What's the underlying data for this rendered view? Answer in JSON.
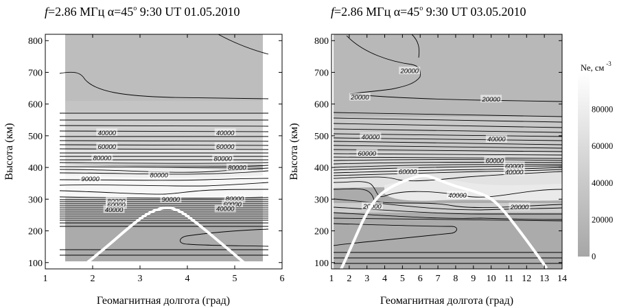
{
  "chart_data": [
    {
      "type": "contour",
      "title": {
        "prefix": "f",
        "rest": "=2.86 МГц  α=45",
        "deg": "o",
        "tail": " 9:30 UT  01.05.2010"
      },
      "xlabel": "Геомагнитная долгота (град)",
      "ylabel": "Высота (км)",
      "xlim": [
        1,
        6
      ],
      "ylim": [
        80,
        820
      ],
      "xticks": [
        1,
        2,
        3,
        4,
        5,
        6
      ],
      "yticks": [
        100,
        200,
        300,
        400,
        500,
        600,
        700,
        800
      ],
      "contour_labels": [
        {
          "text": "40000",
          "x": 2.3,
          "y": 510
        },
        {
          "text": "40000",
          "x": 4.8,
          "y": 510
        },
        {
          "text": "60000",
          "x": 2.3,
          "y": 466
        },
        {
          "text": "60000",
          "x": 4.8,
          "y": 466
        },
        {
          "text": "80000",
          "x": 2.2,
          "y": 430
        },
        {
          "text": "80000",
          "x": 4.75,
          "y": 428
        },
        {
          "text": "80000",
          "x": 5.05,
          "y": 400
        },
        {
          "text": "80000",
          "x": 3.4,
          "y": 376
        },
        {
          "text": "90000",
          "x": 1.95,
          "y": 364
        },
        {
          "text": "90000",
          "x": 3.65,
          "y": 300
        },
        {
          "text": "80000",
          "x": 2.5,
          "y": 294
        },
        {
          "text": "80000",
          "x": 5.0,
          "y": 302
        },
        {
          "text": "60000",
          "x": 2.5,
          "y": 282
        },
        {
          "text": "60000",
          "x": 4.95,
          "y": 285
        },
        {
          "text": "40000",
          "x": 2.45,
          "y": 267
        },
        {
          "text": "40000",
          "x": 4.8,
          "y": 270
        }
      ],
      "ray_path": [
        [
          1.72,
          80
        ],
        [
          2.3,
          150
        ],
        [
          2.8,
          215
        ],
        [
          3.15,
          255
        ],
        [
          3.5,
          275
        ],
        [
          3.8,
          268
        ],
        [
          4.2,
          225
        ],
        [
          4.6,
          175
        ],
        [
          5.0,
          125
        ],
        [
          5.35,
          80
        ]
      ]
    },
    {
      "type": "contour",
      "title": {
        "prefix": "f",
        "rest": "=2.86 МГц  α=45",
        "deg": "o",
        "tail": " 9:30 UT  03.05.2010"
      },
      "xlabel": "Геомагнитная долгота (град)",
      "ylabel": "Высота (км)",
      "xlim": [
        1,
        14
      ],
      "ylim": [
        80,
        820
      ],
      "xticks": [
        1,
        2,
        3,
        4,
        5,
        6,
        7,
        8,
        9,
        10,
        11,
        12,
        13,
        14
      ],
      "yticks": [
        100,
        200,
        300,
        400,
        500,
        600,
        700,
        800
      ],
      "contour_labels": [
        {
          "text": "20000",
          "x": 5.4,
          "y": 705
        },
        {
          "text": "20000",
          "x": 2.6,
          "y": 622
        },
        {
          "text": "20000",
          "x": 10.0,
          "y": 616
        },
        {
          "text": "40000",
          "x": 3.2,
          "y": 497
        },
        {
          "text": "40000",
          "x": 10.3,
          "y": 490
        },
        {
          "text": "60000",
          "x": 3.0,
          "y": 445
        },
        {
          "text": "60000",
          "x": 10.2,
          "y": 422
        },
        {
          "text": "60000",
          "x": 11.3,
          "y": 405
        },
        {
          "text": "40000",
          "x": 11.3,
          "y": 386
        },
        {
          "text": "60000",
          "x": 5.3,
          "y": 387
        },
        {
          "text": "40000",
          "x": 8.1,
          "y": 313
        },
        {
          "text": "20000",
          "x": 3.3,
          "y": 278
        },
        {
          "text": "20000",
          "x": 11.6,
          "y": 276
        }
      ],
      "ray_path": [
        [
          1.55,
          80
        ],
        [
          2.2,
          160
        ],
        [
          2.9,
          250
        ],
        [
          3.6,
          310
        ],
        [
          4.4,
          340
        ],
        [
          5.2,
          360
        ],
        [
          6.2,
          378
        ],
        [
          7.0,
          362
        ],
        [
          8.0,
          340
        ],
        [
          9.0,
          326
        ],
        [
          10.0,
          305
        ],
        [
          10.8,
          258
        ],
        [
          11.6,
          200
        ],
        [
          12.4,
          140
        ],
        [
          13.1,
          85
        ]
      ]
    }
  ],
  "colorbar": {
    "label": "Ne, см",
    "label_sup": "-3",
    "ticks": [
      0,
      20000,
      40000,
      60000,
      80000
    ],
    "range": [
      0,
      100000
    ],
    "color_low": "#a6a6a6",
    "color_high": "#ffffff"
  }
}
